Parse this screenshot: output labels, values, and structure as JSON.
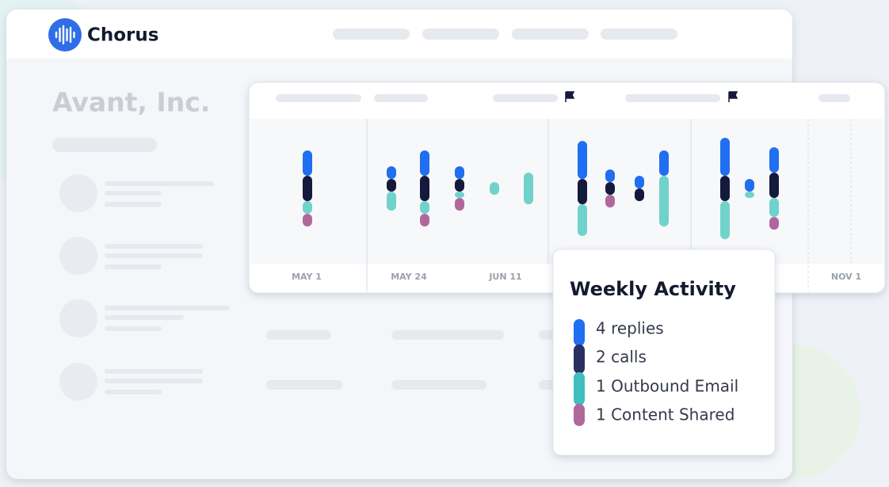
{
  "app": {
    "logo": "Chorus"
  },
  "account": {
    "title": "Avant, Inc."
  },
  "chart_data": {
    "type": "stacked-activity",
    "series": [
      {
        "color": "#1f6ff0",
        "values": [
          4,
          2,
          4,
          2,
          0,
          0,
          6,
          2,
          2,
          4,
          6,
          2,
          4
        ]
      },
      {
        "color": "#141a3c",
        "values": [
          4,
          2,
          4,
          2,
          0,
          0,
          4,
          2,
          2,
          0,
          4,
          0,
          4
        ]
      },
      {
        "color": "#6fd3cb",
        "values": [
          2,
          3,
          2,
          1,
          2,
          5,
          5,
          0,
          0,
          8,
          6,
          1,
          3
        ]
      },
      {
        "color": "#b0689c",
        "values": [
          2,
          0,
          2,
          2,
          0,
          0,
          0,
          2,
          0,
          0,
          0,
          0,
          2
        ]
      }
    ],
    "date_labels": [
      "MAY 1",
      "MAY 24",
      "JUN 11",
      "NOV 1"
    ]
  },
  "tooltip": {
    "title": "Weekly Activity",
    "items": [
      {
        "label": "4 replies",
        "color": "#1f6ff0"
      },
      {
        "label": "2 calls",
        "color": "#2a2f63"
      },
      {
        "label": "1 Outbound Email",
        "color": "#3fbfc0"
      },
      {
        "label": "1 Content Shared",
        "color": "#b0689c"
      }
    ]
  }
}
